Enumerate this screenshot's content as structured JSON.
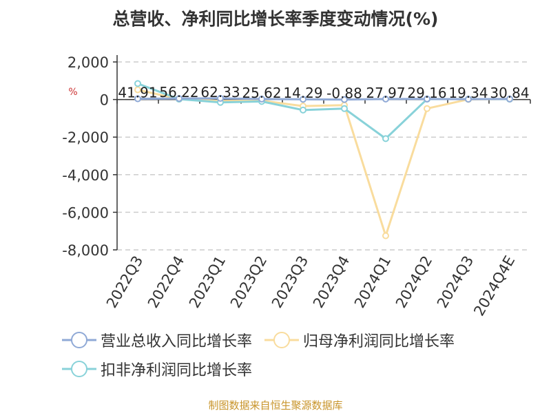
{
  "chart_data": {
    "type": "line",
    "title": "总营收、净利同比增长率季度变动情况(%)",
    "ylabel": "%",
    "xlabel": "",
    "categories": [
      "2022Q3",
      "2022Q4",
      "2023Q1",
      "2023Q2",
      "2023Q3",
      "2023Q4",
      "2024Q1",
      "2024Q2",
      "2024Q3",
      "2024Q4E"
    ],
    "ylim": [
      -8000,
      2000
    ],
    "yticks": [
      2000,
      0,
      -2000,
      -4000,
      -6000,
      -8000
    ],
    "ytick_labels": [
      "2,000",
      "0",
      "-2,000",
      "-4,000",
      "-6,000",
      "-8,000"
    ],
    "grid": true,
    "legend_position": "bottom",
    "series": [
      {
        "name": "营业总收入同比增长率",
        "color": "#8fa9d6",
        "values": [
          41.91,
          56.22,
          62.33,
          25.62,
          14.29,
          -0.88,
          27.97,
          29.16,
          19.34,
          30.84
        ],
        "labels": [
          "41.91",
          "56.22",
          "62.33",
          "25.62",
          "14.29",
          "-0.88",
          "27.97",
          "29.16",
          "19.34",
          "30.84"
        ]
      },
      {
        "name": "归母净利润同比增长率",
        "color": "#f9dc9d",
        "values": [
          520,
          20,
          -80,
          -60,
          -350,
          -300,
          -7250,
          -480,
          10,
          20
        ]
      },
      {
        "name": "扣非净利润同比增长率",
        "color": "#88d2d9",
        "values": [
          850,
          20,
          -150,
          -100,
          -560,
          -480,
          -2080,
          20,
          20,
          20
        ]
      }
    ]
  },
  "source_note": "制图数据来自恒生聚源数据库"
}
